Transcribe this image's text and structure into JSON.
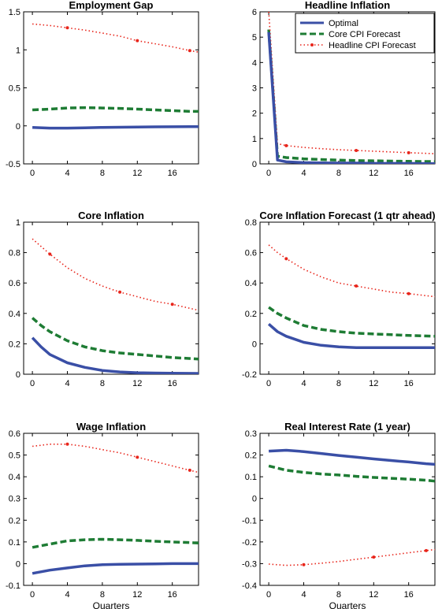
{
  "colors": {
    "optimal": "#3a4fa6",
    "core_cpi_forecast": "#1e7c34",
    "headline_cpi_forecast": "#e8251b"
  },
  "legend": {
    "placement": "top-right of Headline Inflation panel",
    "entries": [
      "Optimal",
      "Core CPI Forecast",
      "Headline CPI Forecast"
    ]
  },
  "chart_data": [
    {
      "type": "line",
      "title": "Employment Gap",
      "xlabel": "",
      "xlim": [
        -1,
        19
      ],
      "ylim": [
        -0.5,
        1.5
      ],
      "xticks": [
        0,
        4,
        8,
        12,
        16
      ],
      "yticks": [
        -0.5,
        0,
        0.5,
        1,
        1.5
      ],
      "ytick_labels": [
        "-0.5",
        "0",
        "0.5",
        "1",
        "1.5"
      ],
      "x": [
        0,
        2,
        4,
        6,
        8,
        10,
        12,
        14,
        16,
        18,
        19
      ],
      "series": [
        {
          "name": "Optimal",
          "style": "solid",
          "values": [
            -0.02,
            -0.03,
            -0.03,
            -0.025,
            -0.02,
            -0.018,
            -0.015,
            -0.013,
            -0.012,
            -0.01,
            -0.01
          ]
        },
        {
          "name": "Core CPI Forecast",
          "style": "dashed",
          "values": [
            0.21,
            0.22,
            0.235,
            0.24,
            0.235,
            0.23,
            0.22,
            0.21,
            0.2,
            0.19,
            0.19
          ]
        },
        {
          "name": "Headline CPI Forecast",
          "style": "dotted",
          "values": [
            1.34,
            1.32,
            1.29,
            1.26,
            1.22,
            1.18,
            1.12,
            1.08,
            1.04,
            0.99,
            0.97
          ]
        }
      ]
    },
    {
      "type": "line",
      "title": "Headline Inflation",
      "xlabel": "",
      "xlim": [
        -1,
        19
      ],
      "ylim": [
        0,
        6
      ],
      "xticks": [
        0,
        4,
        8,
        12,
        16
      ],
      "yticks": [
        0,
        1,
        2,
        3,
        4,
        5,
        6
      ],
      "ytick_labels": [
        "0",
        "1",
        "2",
        "3",
        "4",
        "5",
        "6"
      ],
      "x": [
        0,
        1,
        2,
        4,
        6,
        8,
        10,
        12,
        14,
        16,
        19
      ],
      "series": [
        {
          "name": "Optimal",
          "style": "solid",
          "values": [
            5.2,
            0.15,
            0.08,
            0.05,
            0.04,
            0.03,
            0.03,
            0.02,
            0.02,
            0.02,
            0.01
          ]
        },
        {
          "name": "Core CPI Forecast",
          "style": "dashed",
          "values": [
            5.3,
            0.3,
            0.25,
            0.2,
            0.17,
            0.15,
            0.13,
            0.12,
            0.11,
            0.1,
            0.09
          ]
        },
        {
          "name": "Headline CPI Forecast",
          "style": "dotted",
          "values": [
            6.0,
            0.8,
            0.72,
            0.65,
            0.6,
            0.56,
            0.53,
            0.5,
            0.47,
            0.44,
            0.4
          ]
        }
      ]
    },
    {
      "type": "line",
      "title": "Core Inflation",
      "xlabel": "",
      "xlim": [
        -1,
        19
      ],
      "ylim": [
        0,
        1
      ],
      "xticks": [
        0,
        4,
        8,
        12,
        16
      ],
      "yticks": [
        0,
        0.2,
        0.4,
        0.6,
        0.8,
        1
      ],
      "ytick_labels": [
        "0",
        "0.2",
        "0.4",
        "0.6",
        "0.8",
        "1"
      ],
      "x": [
        0,
        1,
        2,
        4,
        6,
        8,
        10,
        12,
        14,
        16,
        19
      ],
      "series": [
        {
          "name": "Optimal",
          "style": "solid",
          "values": [
            0.24,
            0.18,
            0.13,
            0.075,
            0.045,
            0.025,
            0.015,
            0.01,
            0.008,
            0.006,
            0.005
          ]
        },
        {
          "name": "Core CPI Forecast",
          "style": "dashed",
          "values": [
            0.37,
            0.32,
            0.28,
            0.22,
            0.18,
            0.155,
            0.14,
            0.13,
            0.12,
            0.11,
            0.1
          ]
        },
        {
          "name": "Headline CPI Forecast",
          "style": "dotted",
          "values": [
            0.89,
            0.84,
            0.79,
            0.7,
            0.63,
            0.58,
            0.54,
            0.51,
            0.48,
            0.46,
            0.42
          ]
        }
      ]
    },
    {
      "type": "line",
      "title": "Core Inflation Forecast (1 qtr ahead)",
      "xlabel": "",
      "xlim": [
        -1,
        19
      ],
      "ylim": [
        -0.2,
        0.8
      ],
      "xticks": [
        0,
        4,
        8,
        12,
        16
      ],
      "yticks": [
        -0.2,
        0,
        0.2,
        0.4,
        0.6,
        0.8
      ],
      "ytick_labels": [
        "-0.2",
        "0",
        "0.2",
        "0.4",
        "0.6",
        "0.8"
      ],
      "x": [
        0,
        1,
        2,
        4,
        6,
        8,
        10,
        12,
        14,
        16,
        19
      ],
      "series": [
        {
          "name": "Optimal",
          "style": "solid",
          "values": [
            0.13,
            0.08,
            0.05,
            0.01,
            -0.01,
            -0.02,
            -0.025,
            -0.025,
            -0.025,
            -0.025,
            -0.025
          ]
        },
        {
          "name": "Core CPI Forecast",
          "style": "dashed",
          "values": [
            0.24,
            0.2,
            0.17,
            0.12,
            0.095,
            0.08,
            0.07,
            0.065,
            0.06,
            0.055,
            0.05
          ]
        },
        {
          "name": "Headline CPI Forecast",
          "style": "dotted",
          "values": [
            0.65,
            0.6,
            0.56,
            0.49,
            0.44,
            0.4,
            0.38,
            0.36,
            0.34,
            0.33,
            0.31
          ]
        }
      ]
    },
    {
      "type": "line",
      "title": "Wage Inflation",
      "xlabel": "Quarters",
      "xlim": [
        -1,
        19
      ],
      "ylim": [
        -0.1,
        0.6
      ],
      "xticks": [
        0,
        4,
        8,
        12,
        16
      ],
      "yticks": [
        -0.1,
        0,
        0.1,
        0.2,
        0.3,
        0.4,
        0.5,
        0.6
      ],
      "ytick_labels": [
        "-0.1",
        "0",
        "0.1",
        "0.2",
        "0.3",
        "0.4",
        "0.5",
        "0.6"
      ],
      "x": [
        0,
        2,
        4,
        6,
        8,
        10,
        12,
        14,
        16,
        18,
        19
      ],
      "series": [
        {
          "name": "Optimal",
          "style": "solid",
          "values": [
            -0.045,
            -0.03,
            -0.02,
            -0.01,
            -0.005,
            -0.003,
            -0.002,
            -0.001,
            0,
            0,
            0
          ]
        },
        {
          "name": "Core CPI Forecast",
          "style": "dashed",
          "values": [
            0.075,
            0.09,
            0.105,
            0.11,
            0.112,
            0.11,
            0.107,
            0.103,
            0.1,
            0.097,
            0.095
          ]
        },
        {
          "name": "Headline CPI Forecast",
          "style": "dotted",
          "values": [
            0.54,
            0.55,
            0.55,
            0.54,
            0.525,
            0.51,
            0.49,
            0.47,
            0.45,
            0.43,
            0.42
          ]
        }
      ]
    },
    {
      "type": "line",
      "title": "Real Interest Rate (1 year)",
      "xlabel": "Quarters",
      "xlim": [
        -1,
        19
      ],
      "ylim": [
        -0.4,
        0.3
      ],
      "xticks": [
        0,
        4,
        8,
        12,
        16
      ],
      "yticks": [
        -0.4,
        -0.3,
        -0.2,
        -0.1,
        0,
        0.1,
        0.2,
        0.3
      ],
      "ytick_labels": [
        "-0.4",
        "-0.3",
        "-0.2",
        "-0.1",
        "0",
        "0.1",
        "0.2",
        "0.3"
      ],
      "x": [
        0,
        2,
        4,
        6,
        8,
        10,
        12,
        14,
        16,
        18,
        19
      ],
      "series": [
        {
          "name": "Optimal",
          "style": "solid",
          "values": [
            0.218,
            0.222,
            0.216,
            0.207,
            0.198,
            0.19,
            0.182,
            0.175,
            0.168,
            0.16,
            0.157
          ]
        },
        {
          "name": "Core CPI Forecast",
          "style": "dashed",
          "values": [
            0.15,
            0.13,
            0.12,
            0.113,
            0.108,
            0.102,
            0.097,
            0.093,
            0.089,
            0.084,
            0.08
          ]
        },
        {
          "name": "Headline CPI Forecast",
          "style": "dotted",
          "values": [
            -0.302,
            -0.308,
            -0.305,
            -0.298,
            -0.29,
            -0.28,
            -0.27,
            -0.26,
            -0.25,
            -0.24,
            -0.235
          ]
        }
      ]
    }
  ]
}
